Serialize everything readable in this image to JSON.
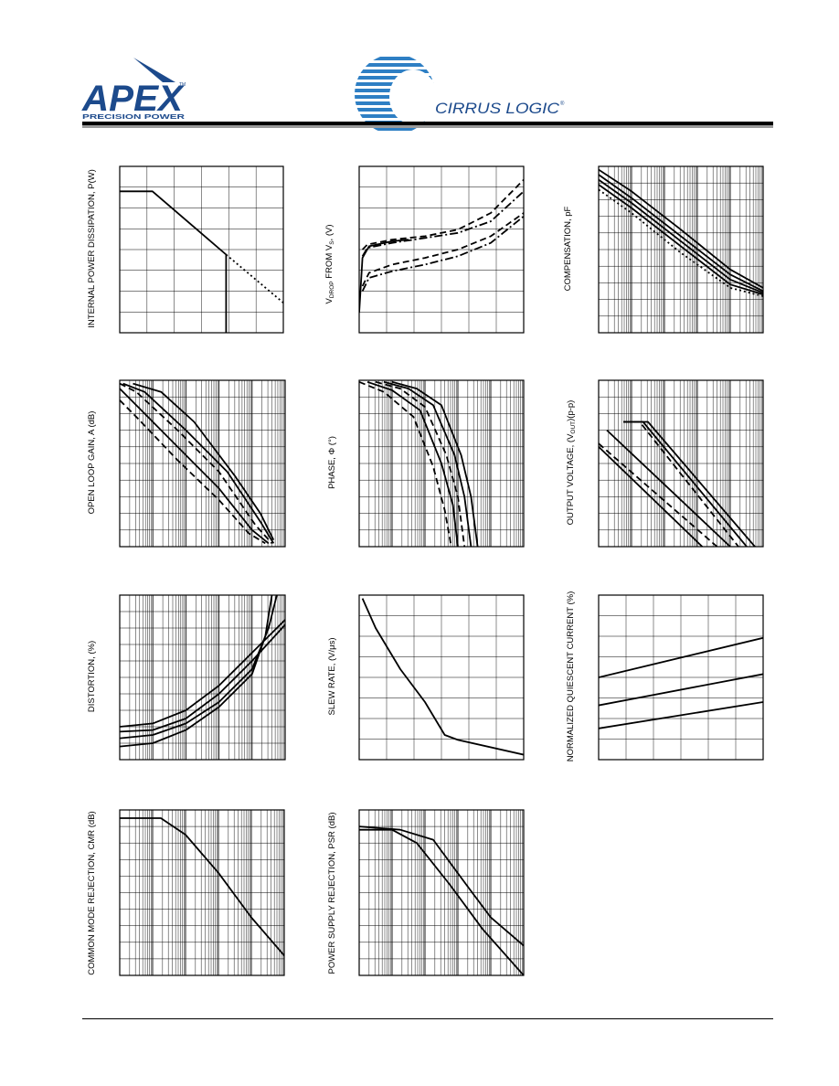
{
  "header": {
    "apex": {
      "name": "APEX",
      "tagline": "PRECISION POWER",
      "tm": "TM"
    },
    "cirrus": {
      "name": "CIRRUS LOGIC",
      "reg": "®"
    }
  },
  "charts": {
    "power_derating": {
      "ylabel": "INTERNAL POWER DISSIPATION, P(W)"
    },
    "output_swing": {
      "ylabel_parts": [
        "V",
        "DROP",
        " FROM V",
        "S",
        ", (V)"
      ]
    },
    "compensation": {
      "ylabel": "COMPENSATION, pF"
    },
    "open_loop_gain": {
      "ylabel": "OPEN LOOP GAIN, A (dB)"
    },
    "phase": {
      "ylabel": "PHASE, Φ (°)"
    },
    "output_voltage": {
      "ylabel_parts": [
        "OUTPUT VOLTAGE, (V",
        "OUT",
        ")(p-p)"
      ]
    },
    "distortion": {
      "ylabel": "DISTORTION, (%)"
    },
    "slew_rate": {
      "ylabel": "SLEW RATE, (V/μs)"
    },
    "quiescent": {
      "ylabel": "NORMALIZED QUIESCENT CURRENT (%)"
    },
    "cmr": {
      "ylabel": "COMMON MODE REJECTION, CMR (dB)"
    },
    "psr": {
      "ylabel": "POWER SUPPLY REJECTION, PSR (dB)"
    }
  },
  "chart_data": [
    {
      "id": "power_derating",
      "type": "line",
      "xlim": [
        0,
        1
      ],
      "ylim": [
        0,
        1
      ],
      "grid": "linear",
      "series": [
        {
          "style": "solid",
          "points": [
            [
              0,
              0.85
            ],
            [
              0.2,
              0.85
            ],
            [
              0.65,
              0.47
            ]
          ]
        },
        {
          "style": "dotted",
          "points": [
            [
              0.65,
              0.47
            ],
            [
              1,
              0.18
            ]
          ]
        },
        {
          "style": "solid",
          "points": [
            [
              0.65,
              0
            ],
            [
              0.65,
              0.47
            ]
          ]
        }
      ]
    },
    {
      "id": "output_swing",
      "type": "line",
      "xlim": [
        0,
        1
      ],
      "ylim": [
        0,
        1
      ],
      "grid": "linear",
      "series": [
        {
          "style": "dashed",
          "points": [
            [
              0.02,
              0.5
            ],
            [
              0.05,
              0.53
            ],
            [
              0.2,
              0.56
            ],
            [
              0.4,
              0.58
            ],
            [
              0.6,
              0.62
            ],
            [
              0.8,
              0.72
            ],
            [
              1,
              0.92
            ]
          ]
        },
        {
          "style": "dashdot",
          "points": [
            [
              0.02,
              0.46
            ],
            [
              0.05,
              0.51
            ],
            [
              0.2,
              0.54
            ],
            [
              0.4,
              0.57
            ],
            [
              0.6,
              0.6
            ],
            [
              0.8,
              0.67
            ],
            [
              1,
              0.85
            ]
          ]
        },
        {
          "style": "dashed",
          "points": [
            [
              0.02,
              0.28
            ],
            [
              0.06,
              0.36
            ],
            [
              0.2,
              0.41
            ],
            [
              0.4,
              0.45
            ],
            [
              0.6,
              0.5
            ],
            [
              0.8,
              0.58
            ],
            [
              1,
              0.72
            ]
          ]
        },
        {
          "style": "dashdot",
          "points": [
            [
              0.02,
              0.25
            ],
            [
              0.06,
              0.33
            ],
            [
              0.2,
              0.37
            ],
            [
              0.4,
              0.41
            ],
            [
              0.6,
              0.46
            ],
            [
              0.8,
              0.54
            ],
            [
              1,
              0.7
            ]
          ]
        },
        {
          "style": "solid",
          "points": [
            [
              0,
              0.12
            ],
            [
              0.02,
              0.45
            ],
            [
              0.06,
              0.52
            ],
            [
              0.2,
              0.55
            ],
            [
              0.3,
              0.56
            ]
          ]
        }
      ]
    },
    {
      "id": "compensation",
      "type": "line",
      "grid": "log",
      "series": [
        {
          "style": "solid",
          "points": [
            [
              0,
              0.98
            ],
            [
              0.2,
              0.85
            ],
            [
              0.5,
              0.62
            ],
            [
              0.8,
              0.38
            ],
            [
              1,
              0.27
            ]
          ]
        },
        {
          "style": "solid",
          "points": [
            [
              0,
              0.95
            ],
            [
              0.2,
              0.81
            ],
            [
              0.5,
              0.58
            ],
            [
              0.8,
              0.35
            ],
            [
              1,
              0.25
            ]
          ]
        },
        {
          "style": "solid",
          "points": [
            [
              0,
              0.92
            ],
            [
              0.2,
              0.78
            ],
            [
              0.5,
              0.55
            ],
            [
              0.8,
              0.32
            ],
            [
              1,
              0.24
            ]
          ]
        },
        {
          "style": "solid",
          "points": [
            [
              0,
              0.89
            ],
            [
              0.2,
              0.75
            ],
            [
              0.5,
              0.52
            ],
            [
              0.8,
              0.29
            ],
            [
              1,
              0.23
            ]
          ]
        },
        {
          "style": "dotted",
          "points": [
            [
              0,
              0.86
            ],
            [
              0.2,
              0.72
            ],
            [
              0.5,
              0.48
            ],
            [
              0.8,
              0.27
            ],
            [
              1,
              0.22
            ]
          ]
        }
      ]
    },
    {
      "id": "open_loop_gain",
      "type": "line",
      "grid": "log",
      "series": [
        {
          "style": "solid",
          "points": [
            [
              0.08,
              0.98
            ],
            [
              0.25,
              0.93
            ],
            [
              0.45,
              0.75
            ],
            [
              0.7,
              0.42
            ],
            [
              0.85,
              0.2
            ],
            [
              0.93,
              0.04
            ]
          ]
        },
        {
          "style": "solid",
          "points": [
            [
              0.02,
              0.98
            ],
            [
              0.15,
              0.93
            ],
            [
              0.4,
              0.7
            ],
            [
              0.65,
              0.45
            ],
            [
              0.85,
              0.15
            ],
            [
              0.93,
              0.02
            ]
          ]
        },
        {
          "style": "dashed",
          "points": [
            [
              0,
              0.98
            ],
            [
              0.1,
              0.93
            ],
            [
              0.35,
              0.7
            ],
            [
              0.6,
              0.45
            ],
            [
              0.82,
              0.13
            ],
            [
              0.92,
              0.02
            ]
          ]
        },
        {
          "style": "solid",
          "points": [
            [
              0,
              0.95
            ],
            [
              0.1,
              0.85
            ],
            [
              0.35,
              0.6
            ],
            [
              0.6,
              0.35
            ],
            [
              0.8,
              0.1
            ],
            [
              0.9,
              0.02
            ]
          ]
        },
        {
          "style": "dashed",
          "points": [
            [
              0,
              0.88
            ],
            [
              0.1,
              0.78
            ],
            [
              0.35,
              0.52
            ],
            [
              0.6,
              0.28
            ],
            [
              0.78,
              0.08
            ],
            [
              0.88,
              0.02
            ]
          ]
        }
      ]
    },
    {
      "id": "phase",
      "type": "line",
      "grid": "log",
      "series": [
        {
          "style": "solid",
          "points": [
            [
              0.2,
              0.99
            ],
            [
              0.35,
              0.95
            ],
            [
              0.5,
              0.85
            ],
            [
              0.62,
              0.55
            ],
            [
              0.68,
              0.3
            ],
            [
              0.72,
              0
            ]
          ]
        },
        {
          "style": "solid",
          "points": [
            [
              0.15,
              0.99
            ],
            [
              0.3,
              0.95
            ],
            [
              0.45,
              0.85
            ],
            [
              0.58,
              0.55
            ],
            [
              0.64,
              0.3
            ],
            [
              0.68,
              0
            ]
          ]
        },
        {
          "style": "dashed",
          "points": [
            [
              0.1,
              0.99
            ],
            [
              0.25,
              0.95
            ],
            [
              0.4,
              0.84
            ],
            [
              0.53,
              0.55
            ],
            [
              0.6,
              0.3
            ],
            [
              0.64,
              0
            ]
          ]
        },
        {
          "style": "solid",
          "points": [
            [
              0.05,
              0.99
            ],
            [
              0.2,
              0.94
            ],
            [
              0.37,
              0.82
            ],
            [
              0.5,
              0.5
            ],
            [
              0.57,
              0.25
            ],
            [
              0.6,
              0
            ]
          ]
        },
        {
          "style": "dashed",
          "points": [
            [
              0,
              0.99
            ],
            [
              0.15,
              0.93
            ],
            [
              0.33,
              0.78
            ],
            [
              0.45,
              0.48
            ],
            [
              0.52,
              0.22
            ],
            [
              0.56,
              0
            ]
          ]
        }
      ]
    },
    {
      "id": "output_voltage",
      "type": "line",
      "grid": "log",
      "series": [
        {
          "style": "solid",
          "points": [
            [
              0.15,
              0.75
            ],
            [
              0.3,
              0.75
            ],
            [
              0.95,
              0
            ]
          ]
        },
        {
          "style": "solid",
          "points": [
            [
              0.15,
              0.75
            ],
            [
              0.27,
              0.75
            ],
            [
              0.9,
              0
            ]
          ]
        },
        {
          "style": "dashed",
          "points": [
            [
              0.15,
              0.75
            ],
            [
              0.25,
              0.75
            ],
            [
              0.85,
              0
            ]
          ]
        },
        {
          "style": "solid",
          "points": [
            [
              0.05,
              0.7
            ],
            [
              0.8,
              0
            ]
          ]
        },
        {
          "style": "dashed",
          "points": [
            [
              0,
              0.62
            ],
            [
              0.72,
              0
            ]
          ]
        },
        {
          "style": "solid",
          "points": [
            [
              0,
              0.6
            ],
            [
              0.63,
              0
            ]
          ]
        }
      ]
    },
    {
      "id": "distortion",
      "type": "line",
      "grid": "log",
      "series": [
        {
          "style": "solid",
          "points": [
            [
              0,
              0.2
            ],
            [
              0.2,
              0.22
            ],
            [
              0.4,
              0.3
            ],
            [
              0.6,
              0.45
            ],
            [
              0.8,
              0.65
            ],
            [
              1,
              0.85
            ]
          ]
        },
        {
          "style": "solid",
          "points": [
            [
              0,
              0.17
            ],
            [
              0.2,
              0.18
            ],
            [
              0.4,
              0.25
            ],
            [
              0.6,
              0.4
            ],
            [
              0.8,
              0.6
            ],
            [
              1,
              0.82
            ]
          ]
        },
        {
          "style": "solid",
          "points": [
            [
              0,
              0.13
            ],
            [
              0.2,
              0.15
            ],
            [
              0.4,
              0.22
            ],
            [
              0.6,
              0.35
            ],
            [
              0.8,
              0.55
            ],
            [
              0.9,
              0.8
            ],
            [
              0.95,
              1
            ]
          ]
        },
        {
          "style": "solid",
          "points": [
            [
              0,
              0.08
            ],
            [
              0.2,
              0.1
            ],
            [
              0.4,
              0.18
            ],
            [
              0.6,
              0.32
            ],
            [
              0.8,
              0.52
            ],
            [
              0.88,
              0.75
            ],
            [
              0.92,
              1
            ]
          ]
        }
      ]
    },
    {
      "id": "slew_rate",
      "type": "line",
      "grid": "linear",
      "series": [
        {
          "style": "solid",
          "points": [
            [
              0.02,
              0.98
            ],
            [
              0.1,
              0.8
            ],
            [
              0.25,
              0.55
            ],
            [
              0.4,
              0.35
            ],
            [
              0.52,
              0.15
            ],
            [
              0.6,
              0.12
            ],
            [
              1,
              0.03
            ]
          ]
        }
      ]
    },
    {
      "id": "quiescent",
      "type": "line",
      "grid": "linear",
      "series": [
        {
          "style": "solid",
          "points": [
            [
              0,
              0.5
            ],
            [
              1,
              0.74
            ]
          ]
        },
        {
          "style": "solid",
          "points": [
            [
              0,
              0.33
            ],
            [
              1,
              0.52
            ]
          ]
        },
        {
          "style": "solid",
          "points": [
            [
              0,
              0.19
            ],
            [
              1,
              0.35
            ]
          ]
        }
      ]
    },
    {
      "id": "cmr",
      "type": "line",
      "grid": "log",
      "series": [
        {
          "style": "solid",
          "points": [
            [
              0,
              0.95
            ],
            [
              0.25,
              0.95
            ],
            [
              0.4,
              0.85
            ],
            [
              0.6,
              0.62
            ],
            [
              0.8,
              0.35
            ],
            [
              1,
              0.12
            ]
          ]
        }
      ]
    },
    {
      "id": "psr",
      "type": "line",
      "grid": "log",
      "series": [
        {
          "style": "solid",
          "points": [
            [
              0,
              0.9
            ],
            [
              0.25,
              0.88
            ],
            [
              0.45,
              0.82
            ],
            [
              0.65,
              0.55
            ],
            [
              0.8,
              0.35
            ],
            [
              1,
              0.18
            ]
          ]
        },
        {
          "style": "solid",
          "points": [
            [
              0,
              0.88
            ],
            [
              0.2,
              0.88
            ],
            [
              0.35,
              0.8
            ],
            [
              0.55,
              0.55
            ],
            [
              0.75,
              0.28
            ],
            [
              1,
              0
            ]
          ]
        }
      ]
    }
  ]
}
